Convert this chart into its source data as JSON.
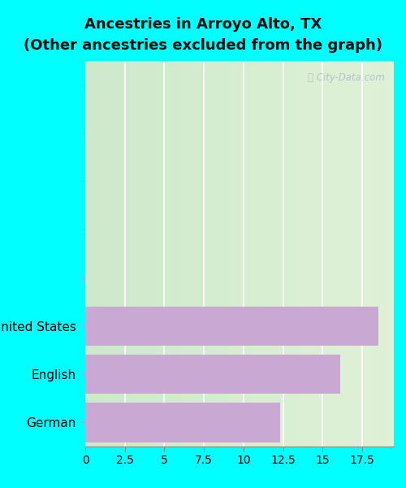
{
  "title_line1": "Ancestries in Arroyo Alto, TX",
  "title_line2": "(Other ancestries excluded from the graph)",
  "categories": [
    "German",
    "English",
    "United States"
  ],
  "values": [
    12.3,
    16.1,
    18.5
  ],
  "empty_rows_above": 5,
  "bar_color": "#c9a8d4",
  "background_color": "#00ffff",
  "plot_bg_color_top": "#f0f8f0",
  "plot_bg_color_bottom": "#e0f0e0",
  "xlim": [
    0,
    19.5
  ],
  "xticks": [
    0,
    2.5,
    5,
    7.5,
    10,
    12.5,
    15,
    17.5
  ],
  "xtick_labels": [
    "0",
    "2.5",
    "5",
    "7.5",
    "10",
    "12.5",
    "15",
    "17.5"
  ],
  "title_fontsize": 13,
  "tick_fontsize": 10,
  "label_fontsize": 11,
  "bar_height": 0.82
}
